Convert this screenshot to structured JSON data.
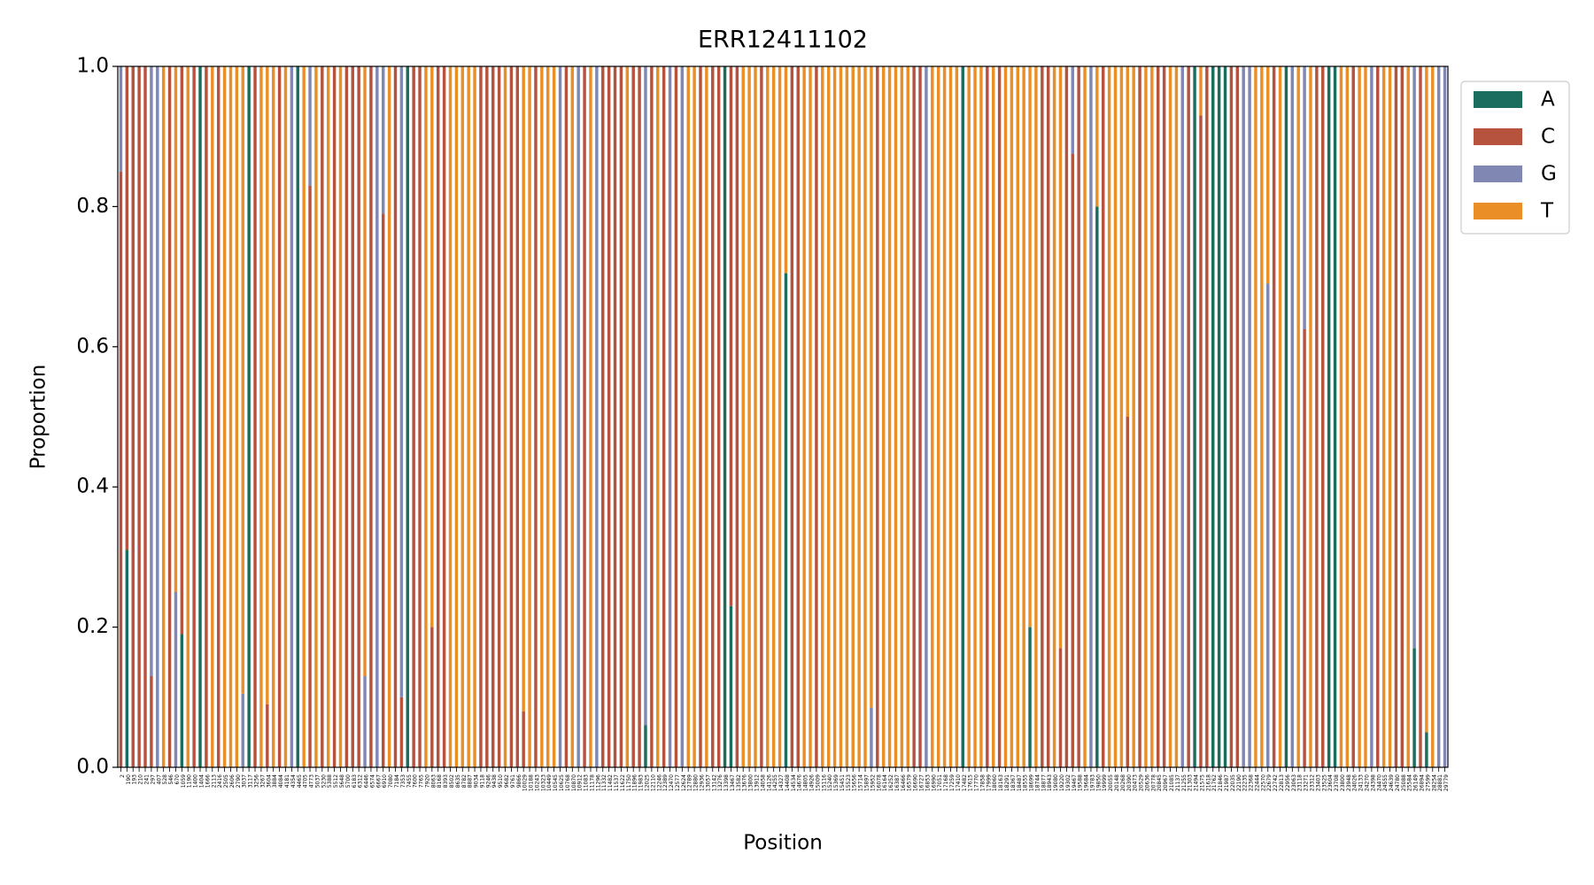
{
  "chart_data": {
    "type": "stacked_bar",
    "title": "ERR12411102",
    "x_label": "Position",
    "y_label": "Proportion",
    "ylim": [
      0,
      1
    ],
    "yticks": [
      {
        "value": 0,
        "label": "0.0"
      },
      0.2,
      0.4,
      0.6,
      0.8,
      {
        "value": 1,
        "label": "1.0"
      }
    ],
    "categories": [
      2,
      190,
      193,
      210,
      241,
      297,
      407,
      528,
      546,
      670,
      1059,
      1190,
      1400,
      1404,
      1666,
      2113,
      2416,
      2505,
      2606,
      2790,
      3037,
      3117,
      3256,
      3267,
      3604,
      3884,
      4084,
      4181,
      4354,
      4465,
      4705,
      4773,
      5037,
      5230,
      5388,
      5512,
      5648,
      5700,
      6183,
      6312,
      6446,
      6574,
      6667,
      6910,
      7080,
      7184,
      7353,
      7455,
      7600,
      7765,
      7920,
      8063,
      8168,
      8393,
      8502,
      8635,
      8782,
      8887,
      9034,
      9118,
      9246,
      9438,
      9510,
      9682,
      9761,
      9866,
      10029,
      10188,
      10243,
      10323,
      10449,
      10545,
      10625,
      10768,
      10870,
      10912,
      11083,
      11178,
      11296,
      11332,
      11482,
      11537,
      11622,
      11750,
      11896,
      11983,
      12025,
      12110,
      12246,
      12389,
      12470,
      12577,
      12624,
      12789,
      12880,
      12936,
      13057,
      13142,
      13276,
      13398,
      13467,
      13582,
      13676,
      13800,
      13912,
      14058,
      14126,
      14255,
      14327,
      14408,
      14534,
      14676,
      14805,
      14926,
      15009,
      15116,
      15240,
      15369,
      15451,
      15523,
      15656,
      15714,
      15897,
      15952,
      16078,
      16164,
      16252,
      16387,
      16466,
      16579,
      16690,
      16727,
      16853,
      16990,
      17051,
      17168,
      17259,
      17410,
      17482,
      17615,
      17770,
      17858,
      17999,
      18060,
      18163,
      18291,
      18367,
      18487,
      18555,
      18699,
      18744,
      18877,
      18943,
      19080,
      19220,
      19302,
      19467,
      19588,
      19684,
      19783,
      19850,
      19999,
      20055,
      20148,
      20268,
      20390,
      20473,
      20529,
      20636,
      20778,
      20845,
      20967,
      21085,
      21137,
      21255,
      21303,
      21494,
      21575,
      21618,
      21762,
      21846,
      21987,
      22035,
      22190,
      22235,
      22368,
      22444,
      22570,
      22679,
      22742,
      22813,
      22956,
      23063,
      23118,
      23271,
      23312,
      23403,
      23525,
      23604,
      23708,
      23800,
      23948,
      24026,
      24133,
      24270,
      24398,
      24470,
      24555,
      24639,
      24780,
      25088,
      25584,
      26149,
      26894,
      27599,
      28254,
      28881,
      29779
    ],
    "series": [
      {
        "name": "A",
        "color": "#1b6e5e",
        "values": [
          0,
          0.31,
          0,
          0,
          0,
          0,
          0,
          0,
          0,
          0,
          0.19,
          0,
          0,
          1,
          0,
          0,
          0,
          0,
          0,
          0,
          0,
          1,
          0,
          0,
          0,
          0,
          0,
          0,
          0,
          1,
          0,
          0,
          0,
          0,
          0,
          0,
          0,
          0,
          0,
          0,
          0,
          0,
          0,
          0,
          0,
          0,
          0,
          1,
          0,
          0,
          0,
          0,
          0,
          0,
          0,
          0,
          0,
          0,
          0,
          0,
          0,
          0,
          0,
          0,
          0,
          0,
          0,
          0,
          0,
          0,
          0,
          0,
          0,
          0,
          0,
          0,
          0,
          0,
          0,
          0,
          0,
          0,
          0,
          0,
          0,
          0,
          0.06,
          0,
          0,
          0,
          0,
          0,
          0,
          0,
          0,
          0,
          0,
          0,
          0,
          1,
          0.23,
          0,
          0,
          0,
          0,
          0,
          0,
          0,
          0,
          0.705,
          0,
          0,
          0,
          0,
          0,
          0,
          0,
          0,
          0,
          0,
          0,
          0,
          0,
          0,
          0,
          0,
          0,
          0,
          0,
          0,
          0,
          0,
          0,
          0,
          0,
          0,
          0,
          0,
          1,
          0,
          0,
          0,
          0,
          0,
          0,
          0,
          0,
          0,
          0,
          0.2,
          0,
          0,
          0,
          0,
          0,
          0,
          0,
          0,
          0,
          0,
          0.8,
          0,
          0,
          0,
          0,
          0,
          0,
          0,
          0,
          0,
          0,
          0,
          0,
          0,
          0,
          0,
          1,
          0,
          0,
          1,
          1,
          1,
          0,
          0,
          0,
          0,
          0,
          0,
          0,
          0,
          0,
          1,
          0,
          0,
          0,
          0,
          0,
          0,
          1,
          1,
          0,
          0,
          0,
          0,
          0,
          0,
          0,
          0,
          0,
          0,
          0,
          0,
          0.17,
          0,
          0.05,
          0,
          0,
          0
        ]
      },
      {
        "name": "C",
        "color": "#b5533f",
        "values": [
          0.85,
          0.69,
          1,
          1,
          1,
          0.13,
          0,
          0,
          1,
          0,
          0.81,
          0,
          1,
          0,
          1,
          0,
          1,
          0,
          0,
          0,
          0,
          0,
          1,
          0,
          0.09,
          0,
          1,
          0,
          0,
          0,
          0,
          0.83,
          0,
          1,
          0,
          1,
          0,
          1,
          1,
          1,
          0,
          1,
          0,
          0.79,
          0,
          1,
          0.1,
          0,
          1,
          1,
          0,
          0.2,
          1,
          1,
          0,
          0,
          0,
          0,
          0,
          1,
          1,
          1,
          1,
          0,
          1,
          1,
          0.08,
          0,
          1,
          0,
          0,
          0,
          0,
          1,
          0,
          0,
          1,
          0,
          0,
          1,
          1,
          1,
          1,
          0,
          1,
          1,
          0,
          1,
          0,
          1,
          0,
          1,
          0,
          0,
          0,
          1,
          0,
          1,
          1,
          0,
          0.77,
          1,
          0,
          0,
          0,
          1,
          0,
          0,
          0,
          0,
          1,
          1,
          0,
          0,
          1,
          0,
          0,
          0,
          0,
          0,
          0,
          0,
          0,
          0,
          1,
          0,
          0,
          0,
          0,
          0,
          1,
          1,
          0,
          0,
          0,
          0,
          0,
          0,
          0,
          0,
          0,
          0,
          1,
          0,
          1,
          0,
          0,
          0,
          0,
          0,
          0,
          1,
          1,
          0,
          0.17,
          1,
          0.875,
          1,
          0,
          0,
          0,
          1,
          0,
          0,
          0,
          0.5,
          0,
          1,
          0,
          0,
          1,
          1,
          0,
          0,
          0,
          1,
          0,
          0.93,
          1,
          0,
          0,
          0,
          1,
          1,
          0,
          0,
          0,
          0,
          0,
          1,
          0,
          0,
          0,
          0,
          0.625,
          0,
          1,
          1,
          0,
          0,
          0,
          0,
          1,
          0,
          0,
          0,
          1,
          0,
          0,
          1,
          1,
          0,
          0,
          1,
          0,
          0,
          0,
          0
        ]
      },
      {
        "name": "G",
        "color": "#7f87b2",
        "values": [
          0.15,
          0,
          0,
          0,
          0,
          0.87,
          1,
          0,
          0,
          0.25,
          0,
          0,
          0,
          0,
          0,
          0,
          0,
          0,
          0,
          0,
          0.105,
          0,
          0,
          0,
          0,
          0,
          0,
          0,
          1,
          0,
          0,
          0.17,
          0,
          0,
          0,
          0,
          0,
          0,
          0,
          0,
          0.13,
          0,
          1,
          0.21,
          0,
          0,
          0.9,
          0,
          0,
          0,
          0,
          0,
          0,
          0,
          0,
          0,
          0,
          0,
          0,
          0,
          0,
          0,
          0,
          0,
          0,
          0,
          0,
          0,
          0,
          0,
          0,
          0,
          1,
          0,
          0,
          1,
          0,
          0,
          1,
          0,
          0,
          0,
          0,
          0,
          0,
          0,
          0.94,
          0,
          0,
          0,
          1,
          0,
          1,
          0,
          0,
          0,
          0,
          0,
          0,
          0,
          0,
          0,
          0,
          0,
          0,
          0,
          0,
          0,
          0,
          0,
          0,
          0,
          0,
          0,
          0,
          0,
          0,
          0,
          0,
          0,
          0,
          0,
          0,
          0.085,
          0,
          0,
          0,
          0,
          0,
          0,
          0,
          0,
          1,
          0,
          0,
          0,
          0,
          0,
          0,
          0,
          0,
          0,
          0,
          0,
          0,
          0,
          0,
          0,
          0,
          0,
          0,
          0,
          0,
          0,
          0,
          0,
          0.125,
          0,
          0,
          1,
          0,
          0,
          0,
          0,
          0,
          0,
          0,
          0,
          0,
          0,
          0,
          0,
          0,
          0,
          1,
          0,
          0,
          0,
          0,
          0,
          0,
          0,
          0,
          0,
          1,
          1,
          0,
          0,
          0.69,
          0,
          0,
          0,
          1,
          0,
          0.375,
          0,
          0,
          0,
          0,
          0,
          0,
          0,
          0,
          0,
          0,
          1,
          0,
          0,
          0,
          0,
          0,
          0,
          0.83,
          0,
          0,
          0,
          1,
          1
        ]
      },
      {
        "name": "T",
        "color": "#ea8f27",
        "values": [
          0,
          0,
          0,
          0,
          0,
          0,
          0,
          1,
          0,
          0.75,
          0,
          1,
          0,
          0,
          0,
          1,
          0,
          1,
          1,
          1,
          0.895,
          0,
          0,
          1,
          0.91,
          1,
          0,
          1,
          0,
          0,
          1,
          0,
          1,
          0,
          1,
          0,
          1,
          0,
          0,
          0,
          0.87,
          0,
          0,
          0,
          1,
          0,
          0,
          0,
          0,
          0,
          1,
          0.8,
          0,
          0,
          1,
          1,
          1,
          1,
          1,
          0,
          0,
          0,
          0,
          1,
          0,
          0,
          0.92,
          1,
          0,
          1,
          1,
          1,
          0,
          0,
          1,
          0,
          0,
          1,
          0,
          0,
          0,
          0,
          0,
          1,
          0,
          0,
          0,
          0,
          1,
          0,
          0,
          0,
          0,
          1,
          1,
          0,
          1,
          0,
          0,
          0,
          0,
          0,
          1,
          1,
          1,
          0,
          1,
          1,
          1,
          0.295,
          0,
          0,
          1,
          1,
          0,
          1,
          1,
          1,
          1,
          1,
          1,
          1,
          1,
          0.915,
          0,
          1,
          1,
          1,
          1,
          1,
          0,
          0,
          0,
          1,
          1,
          1,
          1,
          1,
          0,
          1,
          1,
          1,
          0,
          1,
          0,
          1,
          1,
          1,
          1,
          0.8,
          1,
          0,
          0,
          1,
          0.83,
          0,
          0,
          0,
          1,
          0,
          0.2,
          0,
          1,
          1,
          1,
          0.5,
          1,
          0,
          1,
          1,
          0,
          0,
          1,
          1,
          0,
          0,
          0,
          0.07,
          0,
          0,
          0,
          0,
          0,
          0,
          0,
          0,
          1,
          1,
          0.31,
          0,
          1,
          0,
          0,
          1,
          0,
          1,
          0,
          0,
          0,
          0,
          1,
          1,
          0,
          1,
          1,
          0,
          0,
          1,
          1,
          0,
          0,
          1,
          0,
          0,
          0.95,
          1,
          0,
          0
        ]
      }
    ]
  }
}
